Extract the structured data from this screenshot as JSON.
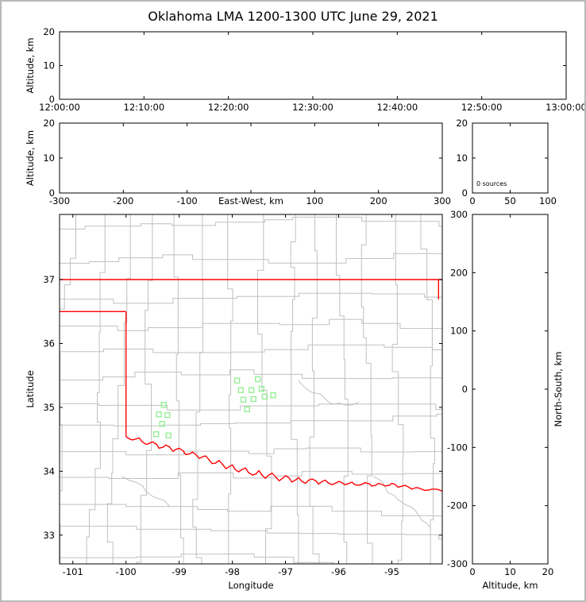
{
  "title": "Oklahoma LMA 1200-1300 UTC June 29, 2021",
  "colors": {
    "state_boundary": "#ff0000",
    "county_lines": "#c0c0c0",
    "stations": "#90ee90",
    "axis": "#000000",
    "text": "#000000",
    "page_border": "#b9b9b9"
  },
  "chart_data": [
    {
      "id": "time_height",
      "type": "scatter",
      "ylabel": "Altitude, km",
      "ylim": [
        0,
        20
      ],
      "y_ticks": [
        0,
        10,
        20
      ],
      "x_tick_labels": [
        "12:00:00",
        "12:10:00",
        "12:20:00",
        "12:30:00",
        "12:40:00",
        "12:50:00",
        "13:00:00"
      ],
      "points": []
    },
    {
      "id": "ew_height",
      "type": "scatter",
      "xlabel": "East-West, km",
      "xlabel_inline": true,
      "xlim": [
        -300,
        300
      ],
      "x_ticks": [
        -300,
        -200,
        -100,
        0,
        100,
        200,
        300
      ],
      "hide_zero_tick_label": true,
      "ylabel": "Altitude, km",
      "ylim": [
        0,
        20
      ],
      "y_ticks": [
        0,
        10,
        20
      ],
      "points": []
    },
    {
      "id": "alt_histogram",
      "type": "bar",
      "xlim": [
        0,
        100
      ],
      "x_ticks": [
        0,
        50,
        100
      ],
      "ylim": [
        0,
        20
      ],
      "y_ticks": [
        0,
        10,
        20
      ],
      "annotation": "0 sources",
      "values": []
    },
    {
      "id": "map",
      "type": "scatter",
      "xlabel": "Longitude",
      "ylabel": "Latitude",
      "xlim": [
        -101.25,
        -94.05
      ],
      "x_ticks": [
        -101,
        -100,
        -99,
        -98,
        -97,
        -96,
        -95
      ],
      "ylim": [
        32.55,
        38.02
      ],
      "y_ticks": [
        33,
        34,
        35,
        36,
        37
      ],
      "stations": [
        [
          -97.91,
          35.42
        ],
        [
          -97.52,
          35.44
        ],
        [
          -97.84,
          35.27
        ],
        [
          -97.64,
          35.27
        ],
        [
          -97.45,
          35.29
        ],
        [
          -97.79,
          35.12
        ],
        [
          -97.6,
          35.13
        ],
        [
          -97.39,
          35.17
        ],
        [
          -97.72,
          34.97
        ],
        [
          -97.23,
          35.19
        ],
        [
          -99.29,
          35.04
        ],
        [
          -99.38,
          34.89
        ],
        [
          -99.22,
          34.88
        ],
        [
          -99.32,
          34.74
        ],
        [
          -99.43,
          34.58
        ],
        [
          -99.2,
          34.56
        ]
      ],
      "state_boundary_segments": [
        [
          [
            -101.25,
            37.0
          ],
          [
            -94.05,
            37.0
          ]
        ],
        [
          [
            -101.25,
            36.5
          ],
          [
            -100.0,
            36.5
          ]
        ],
        [
          [
            -100.0,
            36.5
          ],
          [
            -100.0,
            34.54
          ]
        ],
        [
          [
            -94.12,
            37.0
          ],
          [
            -94.12,
            36.69
          ]
        ],
        [
          [
            -100.0,
            34.54
          ],
          [
            -99.88,
            34.49
          ],
          [
            -99.75,
            34.52
          ],
          [
            -99.62,
            34.42
          ],
          [
            -99.5,
            34.46
          ],
          [
            -99.38,
            34.36
          ],
          [
            -99.25,
            34.41
          ],
          [
            -99.12,
            34.31
          ],
          [
            -99.0,
            34.36
          ],
          [
            -98.88,
            34.26
          ],
          [
            -98.75,
            34.3
          ],
          [
            -98.62,
            34.2
          ],
          [
            -98.5,
            34.24
          ],
          [
            -98.38,
            34.12
          ],
          [
            -98.25,
            34.17
          ],
          [
            -98.12,
            34.04
          ],
          [
            -98.0,
            34.1
          ],
          [
            -97.88,
            33.99
          ],
          [
            -97.75,
            34.05
          ],
          [
            -97.62,
            33.94
          ],
          [
            -97.5,
            34.01
          ],
          [
            -97.38,
            33.89
          ],
          [
            -97.25,
            33.97
          ],
          [
            -97.12,
            33.85
          ],
          [
            -97.0,
            33.93
          ],
          [
            -96.88,
            33.83
          ],
          [
            -96.75,
            33.9
          ],
          [
            -96.62,
            33.81
          ],
          [
            -96.5,
            33.88
          ],
          [
            -96.38,
            33.8
          ],
          [
            -96.25,
            33.86
          ],
          [
            -96.12,
            33.79
          ],
          [
            -96.0,
            33.84
          ],
          [
            -95.88,
            33.79
          ],
          [
            -95.75,
            33.83
          ],
          [
            -95.62,
            33.78
          ],
          [
            -95.5,
            33.82
          ],
          [
            -95.38,
            33.77
          ],
          [
            -95.25,
            33.81
          ],
          [
            -95.12,
            33.77
          ],
          [
            -95.0,
            33.81
          ],
          [
            -94.88,
            33.75
          ],
          [
            -94.75,
            33.78
          ],
          [
            -94.62,
            33.72
          ],
          [
            -94.5,
            33.74
          ],
          [
            -94.38,
            33.7
          ],
          [
            -94.25,
            33.72
          ],
          [
            -94.05,
            33.69
          ]
        ]
      ],
      "gray_features": [
        [
          [
            -96.75,
            35.42
          ],
          [
            -96.42,
            35.22
          ],
          [
            -96.05,
            35.05
          ],
          [
            -95.62,
            35.08
          ]
        ],
        [
          [
            -95.35,
            33.92
          ],
          [
            -94.95,
            33.62
          ],
          [
            -94.55,
            33.38
          ],
          [
            -94.28,
            33.12
          ]
        ],
        [
          [
            -100.08,
            33.92
          ],
          [
            -99.62,
            33.68
          ],
          [
            -99.18,
            33.45
          ]
        ]
      ]
    },
    {
      "id": "ns_height",
      "type": "scatter",
      "xlabel": "Altitude, km",
      "xlim": [
        0,
        20
      ],
      "x_ticks": [
        0,
        10,
        20
      ],
      "ylabel": "North-South, km",
      "ylabel_side": "right",
      "ylim": [
        -300,
        300
      ],
      "y_ticks": [
        -300,
        -200,
        -100,
        0,
        100,
        200,
        300
      ],
      "points": []
    }
  ]
}
